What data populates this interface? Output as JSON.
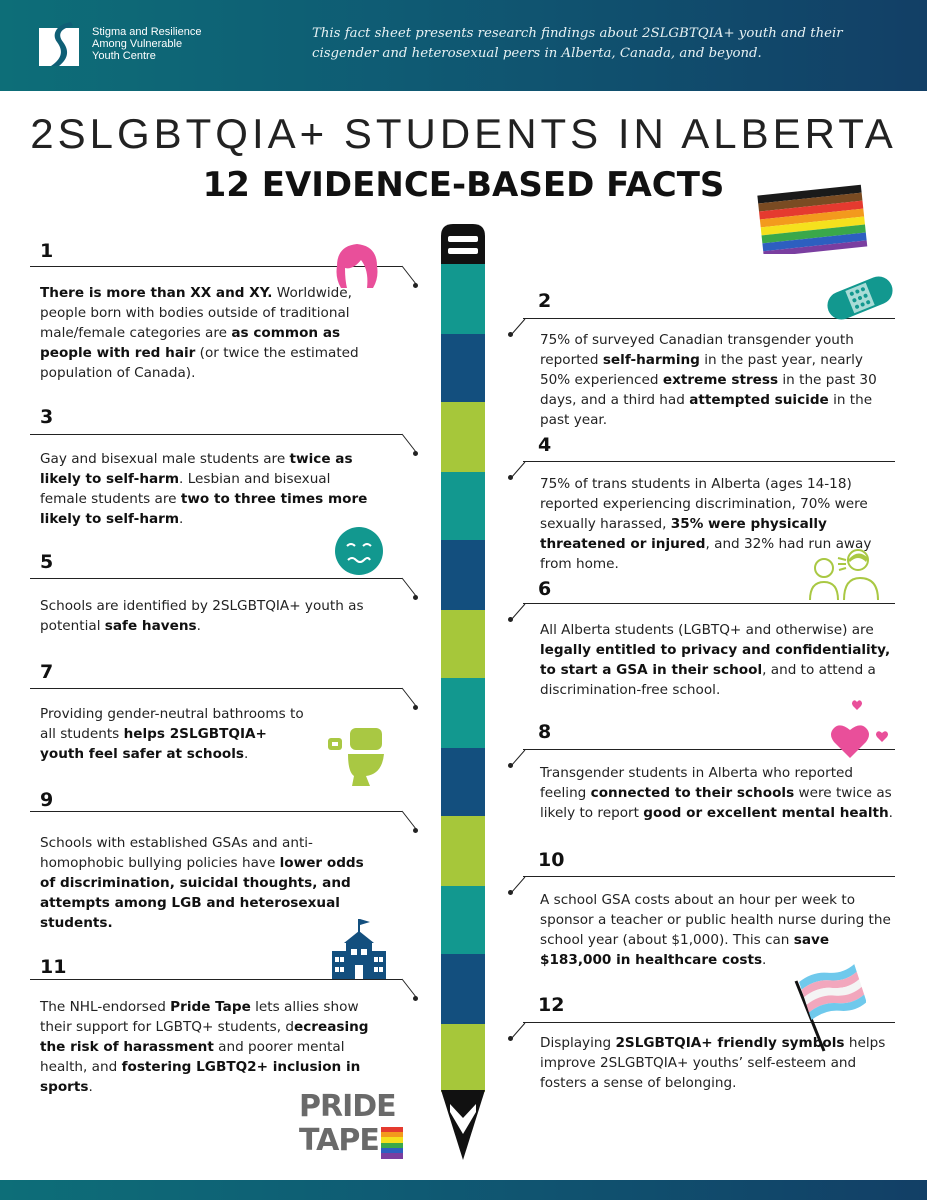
{
  "header": {
    "org_name_lines": [
      "Stigma and Resilience",
      "Among Vulnerable",
      "Youth Centre"
    ],
    "note": "This fact sheet presents research findings about 2SLGBTQIA+ youth and their cisgender and heterosexual peers in Alberta, Canada, and beyond."
  },
  "title": {
    "line1": "2SLGBTQIA+ STUDENTS IN ALBERTA",
    "line2": "12 EVIDENCE-BASED FACTS"
  },
  "facts": [
    {
      "num": "1",
      "segments": [
        {
          "t": "There is more than XX and XY.",
          "b": true
        },
        {
          "t": " Worldwide, people born with bodies outside of traditional male/female categories are ",
          "b": false
        },
        {
          "t": "as common as people with red hair",
          "b": true
        },
        {
          "t": " (or twice the estimated population of Canada).",
          "b": false
        }
      ]
    },
    {
      "num": "2",
      "segments": [
        {
          "t": "75% of surveyed Canadian transgender youth reported ",
          "b": false
        },
        {
          "t": "self-harming",
          "b": true
        },
        {
          "t": " in the past year, nearly 50% experienced ",
          "b": false
        },
        {
          "t": "extreme stress",
          "b": true
        },
        {
          "t": " in the past 30 days, and a third had ",
          "b": false
        },
        {
          "t": "attempted suicide",
          "b": true
        },
        {
          "t": " in the past year.",
          "b": false
        }
      ]
    },
    {
      "num": "3",
      "segments": [
        {
          "t": "Gay and bisexual male students are ",
          "b": false
        },
        {
          "t": "twice as likely to self-harm",
          "b": true
        },
        {
          "t": ". Lesbian and bisexual female students are  ",
          "b": false
        },
        {
          "t": "two to three times more likely to self-harm",
          "b": true
        },
        {
          "t": ".",
          "b": false
        }
      ]
    },
    {
      "num": "4",
      "segments": [
        {
          "t": "75% of trans students in Alberta (ages 14-18) reported experiencing discrimination, 70% were sexually harassed, ",
          "b": false
        },
        {
          "t": "35% were physically threatened or injured",
          "b": true
        },
        {
          "t": ", and 32% had run away from home.",
          "b": false
        }
      ]
    },
    {
      "num": "5",
      "segments": [
        {
          "t": "Schools  are identified by  2SLGBTQIA+ youth as potential ",
          "b": false
        },
        {
          "t": "safe havens",
          "b": true
        },
        {
          "t": ".",
          "b": false
        }
      ]
    },
    {
      "num": "6",
      "segments": [
        {
          "t": "All Alberta students (LGBTQ+ and otherwise) are ",
          "b": false
        },
        {
          "t": "legally entitled to privacy and confidentiality, to start a GSA in their school",
          "b": true
        },
        {
          "t": ", and to attend a discrimination-free school.",
          "b": false
        }
      ]
    },
    {
      "num": "7",
      "segments": [
        {
          "t": "Providing gender-neutral bathrooms to all students ",
          "b": false
        },
        {
          "t": "helps 2SLGBTQIA+ youth feel safer at schools",
          "b": true
        },
        {
          "t": ".",
          "b": false
        }
      ]
    },
    {
      "num": "8",
      "segments": [
        {
          "t": "Transgender students in Alberta who reported feeling ",
          "b": false
        },
        {
          "t": "connected to their schools",
          "b": true
        },
        {
          "t": " were twice as likely to report ",
          "b": false
        },
        {
          "t": "good or excellent mental health",
          "b": true
        },
        {
          "t": ".",
          "b": false
        }
      ]
    },
    {
      "num": "9",
      "segments": [
        {
          "t": "Schools with established GSAs and anti-homophobic bullying policies have ",
          "b": false
        },
        {
          "t": "lower odds of discrimination, suicidal thoughts, and attempts among LGB and heterosexual students.",
          "b": true
        }
      ]
    },
    {
      "num": "10",
      "segments": [
        {
          "t": "A school GSA costs about an hour per week to sponsor a teacher or public health nurse during the school year (about $1,000). This can ",
          "b": false
        },
        {
          "t": "save $183,000 in healthcare costs",
          "b": true
        },
        {
          "t": ".",
          "b": false
        }
      ]
    },
    {
      "num": "11",
      "segments": [
        {
          "t": "The NHL-endorsed ",
          "b": false
        },
        {
          "t": "Pride Tape",
          "b": true
        },
        {
          "t": " lets allies show their support for LGBTQ+ students, d",
          "b": false
        },
        {
          "t": "ecreasing the risk of harassment",
          "b": true
        },
        {
          "t": " and poorer mental health, and ",
          "b": false
        },
        {
          "t": "fostering LGBTQ2+ inclusion in sports",
          "b": true
        },
        {
          "t": ".",
          "b": false
        }
      ]
    },
    {
      "num": "12",
      "segments": [
        {
          "t": "Displaying ",
          "b": false
        },
        {
          "t": "2SLGBTQIA+ friendly symbols",
          "b": true
        },
        {
          "t": " helps improve 2SLGBTQIA+ youths’ self-esteem and fosters a sense of belonging.",
          "b": false
        }
      ]
    }
  ],
  "logo": {
    "line1": "PRIDE",
    "line2": "TAPE"
  },
  "colors": {
    "teal": "#12988f",
    "navy": "#134f7e",
    "lime": "#a6c73a",
    "pink": "#e94f9a",
    "icon_green": "#a9c843"
  },
  "icons": [
    "logo-s-icon",
    "progress-pride-flag-icon",
    "hair-icon",
    "bandage-icon",
    "worried-face-icon",
    "shouting-people-icon",
    "toilet-icon",
    "hearts-icon",
    "school-building-icon",
    "trans-flag-icon"
  ]
}
